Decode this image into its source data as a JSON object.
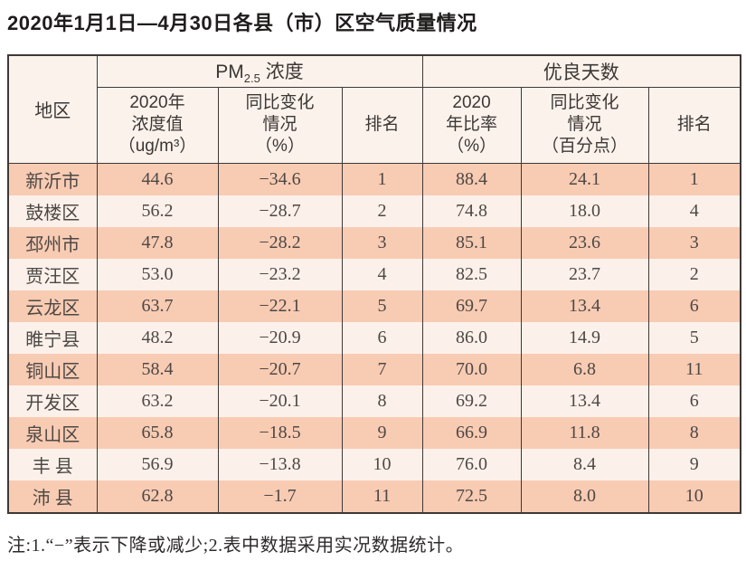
{
  "title": "2020年1月1日—4月30日各县（市）区空气质量情况",
  "table": {
    "header": {
      "region": "地区",
      "pm_group": {
        "prefix": "PM",
        "sub": "2.5",
        "suffix": " 浓度"
      },
      "good_group": "优良天数",
      "pm_value": {
        "l1": "2020年",
        "l2": "浓度值",
        "l3": "（ug/m³）"
      },
      "pm_change": {
        "l1": "同比变化",
        "l2": "情况",
        "l3": "（%）"
      },
      "rank": "排名",
      "ratio": {
        "l1": "2020",
        "l2": "年比率",
        "l3": "（%）"
      },
      "ratio_change": {
        "l1": "同比变化",
        "l2": "情况",
        "l3": "（百分点）"
      },
      "rank2": "排名"
    },
    "rows": [
      {
        "region": "新沂市",
        "pm_value": "44.6",
        "pm_change": "−34.6",
        "pm_rank": "1",
        "ratio": "88.4",
        "ratio_change": "24.1",
        "ratio_rank": "1"
      },
      {
        "region": "鼓楼区",
        "pm_value": "56.2",
        "pm_change": "−28.7",
        "pm_rank": "2",
        "ratio": "74.8",
        "ratio_change": "18.0",
        "ratio_rank": "4"
      },
      {
        "region": "邳州市",
        "pm_value": "47.8",
        "pm_change": "−28.2",
        "pm_rank": "3",
        "ratio": "85.1",
        "ratio_change": "23.6",
        "ratio_rank": "3"
      },
      {
        "region": "贾汪区",
        "pm_value": "53.0",
        "pm_change": "−23.2",
        "pm_rank": "4",
        "ratio": "82.5",
        "ratio_change": "23.7",
        "ratio_rank": "2"
      },
      {
        "region": "云龙区",
        "pm_value": "63.7",
        "pm_change": "−22.1",
        "pm_rank": "5",
        "ratio": "69.7",
        "ratio_change": "13.4",
        "ratio_rank": "6"
      },
      {
        "region": "睢宁县",
        "pm_value": "48.2",
        "pm_change": "−20.9",
        "pm_rank": "6",
        "ratio": "86.0",
        "ratio_change": "14.9",
        "ratio_rank": "5"
      },
      {
        "region": "铜山区",
        "pm_value": "58.4",
        "pm_change": "−20.7",
        "pm_rank": "7",
        "ratio": "70.0",
        "ratio_change": "6.8",
        "ratio_rank": "11"
      },
      {
        "region": "开发区",
        "pm_value": "63.2",
        "pm_change": "−20.1",
        "pm_rank": "8",
        "ratio": "69.2",
        "ratio_change": "13.4",
        "ratio_rank": "6"
      },
      {
        "region": "泉山区",
        "pm_value": "65.8",
        "pm_change": "−18.5",
        "pm_rank": "9",
        "ratio": "66.9",
        "ratio_change": "11.8",
        "ratio_rank": "8"
      },
      {
        "region": "丰 县",
        "pm_value": "56.9",
        "pm_change": "−13.8",
        "pm_rank": "10",
        "ratio": "76.0",
        "ratio_change": "8.4",
        "ratio_rank": "9"
      },
      {
        "region": "沛 县",
        "pm_value": "62.8",
        "pm_change": "−1.7",
        "pm_rank": "11",
        "ratio": "72.5",
        "ratio_change": "8.0",
        "ratio_rank": "10"
      }
    ]
  },
  "note": "注:1.“−”表示下降或减少;2.表中数据采用实况数据统计。",
  "colors": {
    "row_odd": "#f8cbb3",
    "row_even": "#fcf1ea",
    "header_bg": "#fbf2ec",
    "border": "#3e3836",
    "data_text": "#4d4845",
    "title_text": "#1f1d1b"
  }
}
